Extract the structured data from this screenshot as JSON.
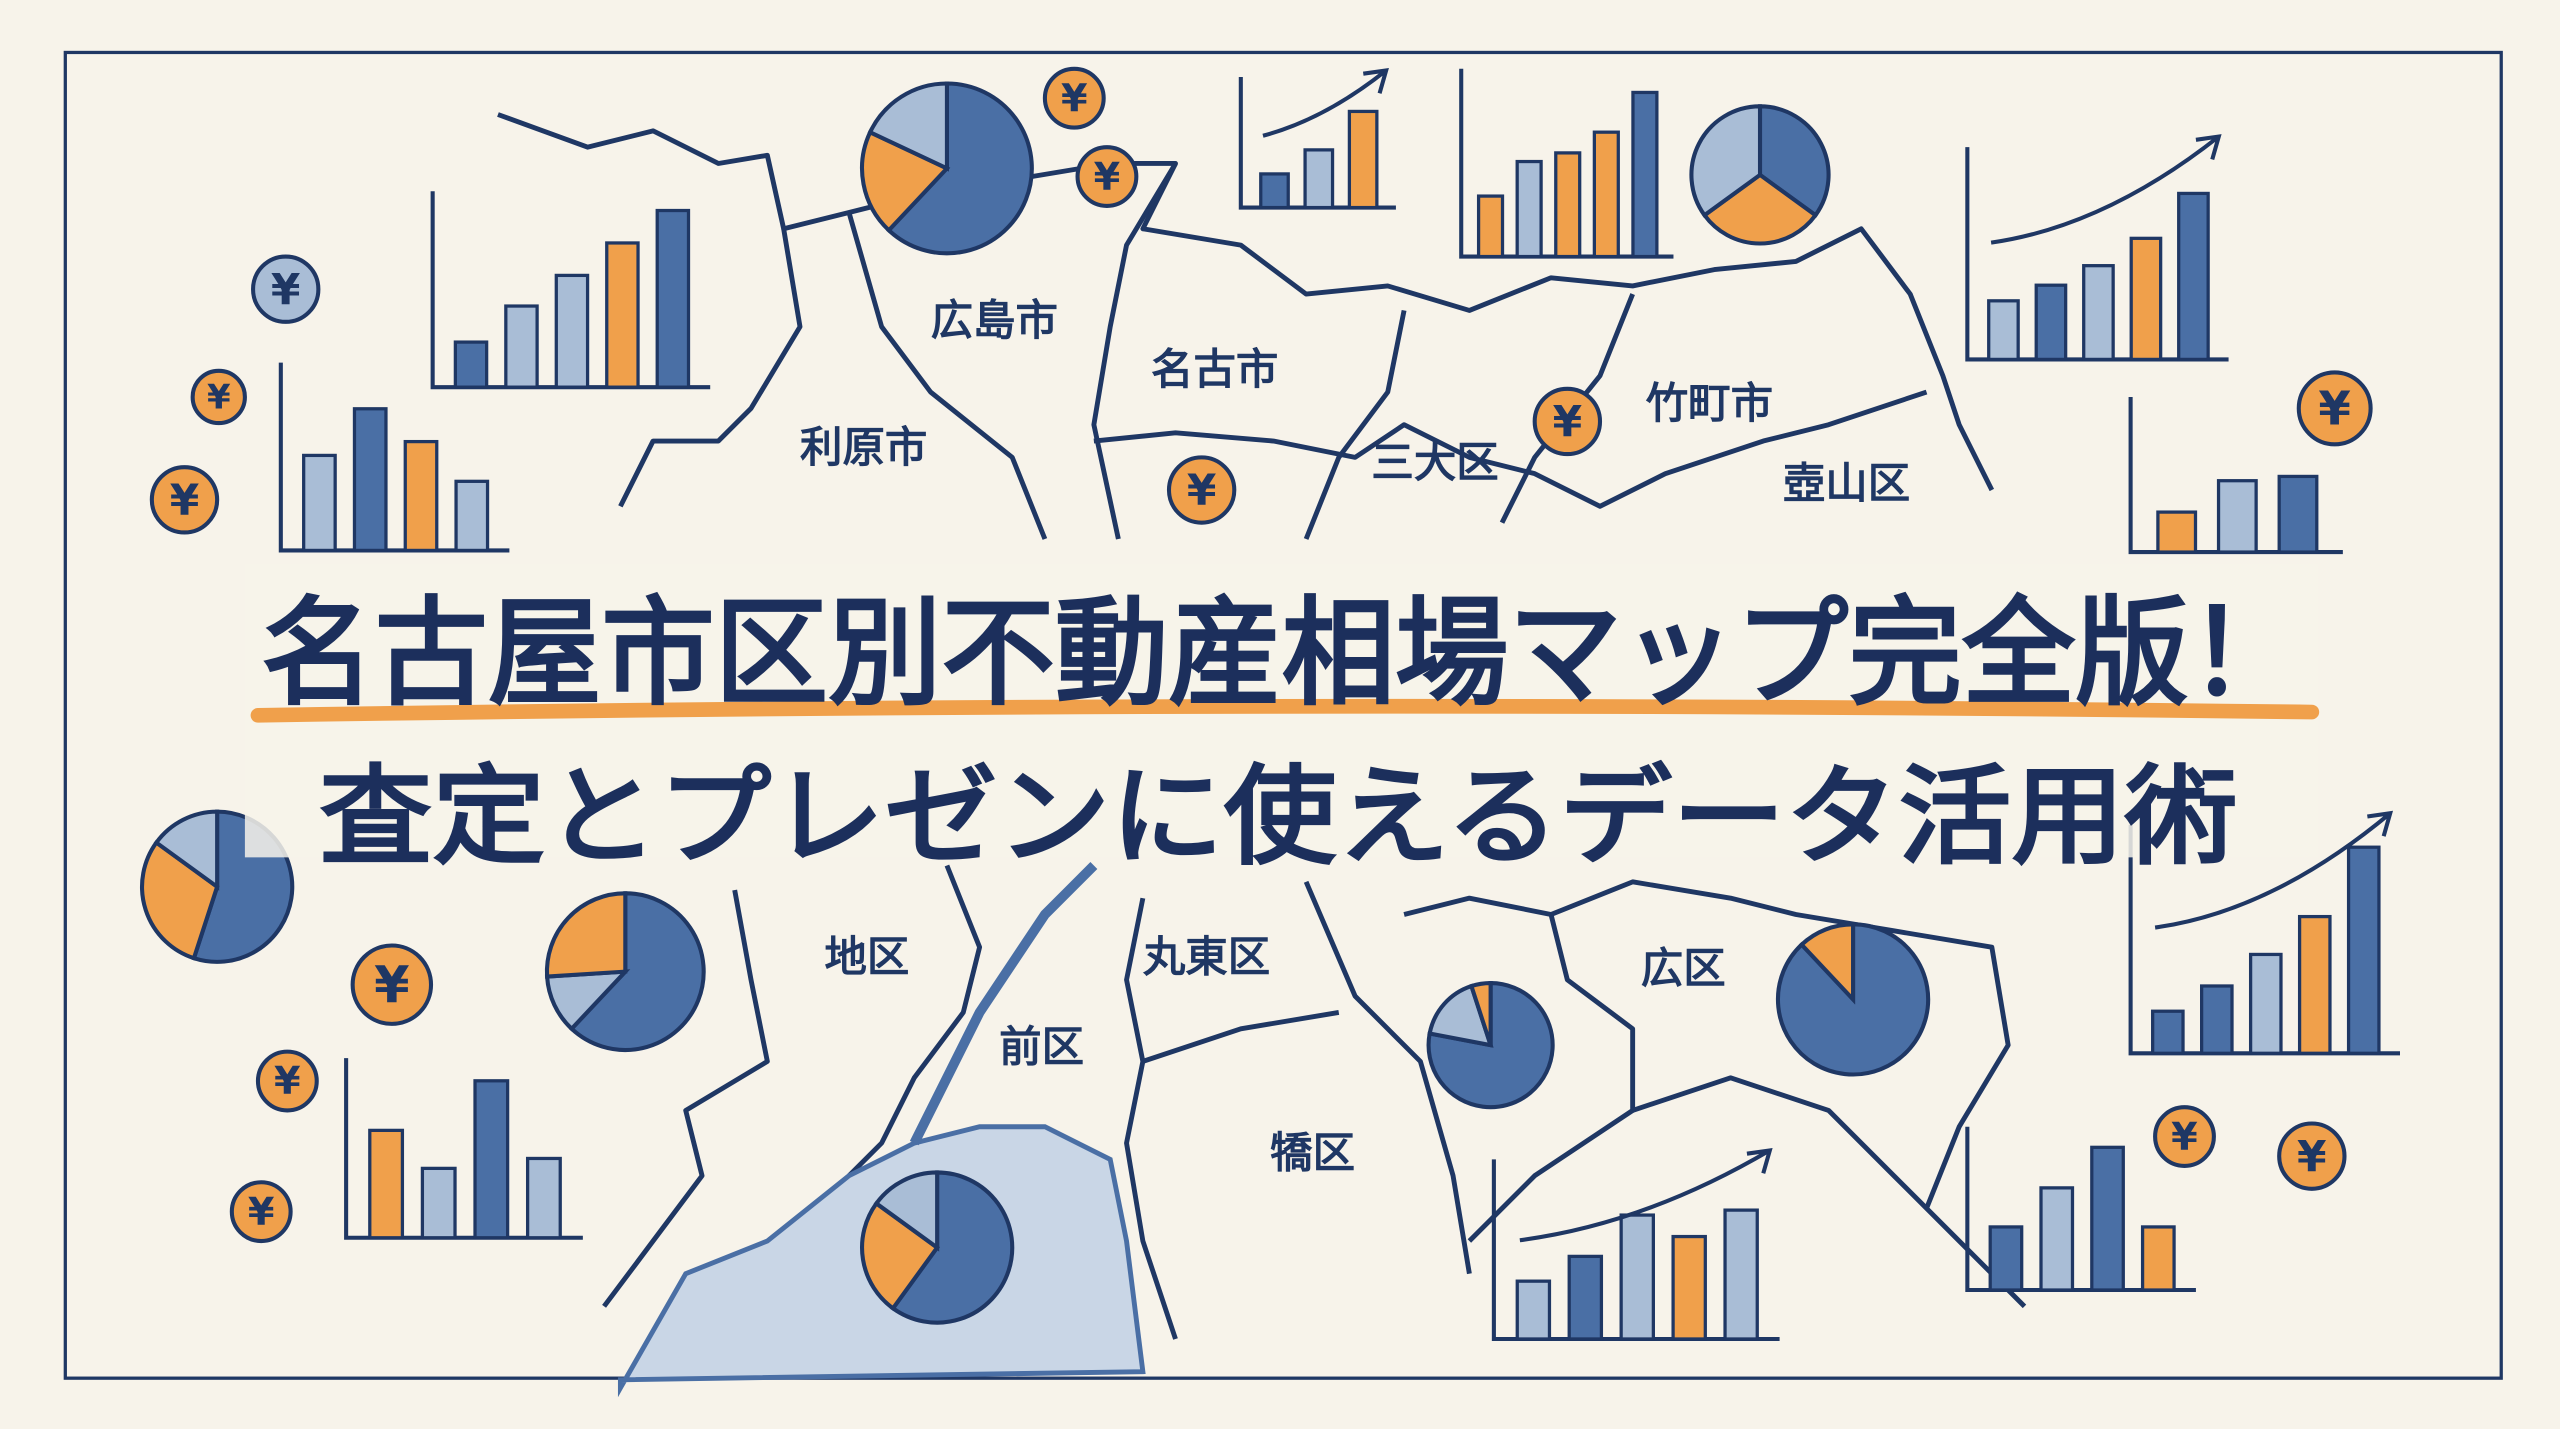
{
  "title": {
    "line1": "名古屋市区別不動産相場マップ完全版！",
    "line2": "査定とプレゼンに使えるデータ活用術"
  },
  "map_labels": [
    "広島市",
    "名古市",
    "利原市",
    "三大区",
    "竹町市",
    "壺山区",
    "地区",
    "丸東区",
    "前区",
    "広区",
    "犞区"
  ],
  "coin_symbol": "¥",
  "icons": [
    "yen-coin-icon",
    "bar-chart-icon",
    "pie-chart-icon",
    "trend-arrow-icon"
  ],
  "colors": {
    "navy": "#1f3764",
    "blue": "#4a6fa5",
    "light_blue": "#a9bdd6",
    "orange": "#f0a04b",
    "paper": "#f7f3ea"
  }
}
